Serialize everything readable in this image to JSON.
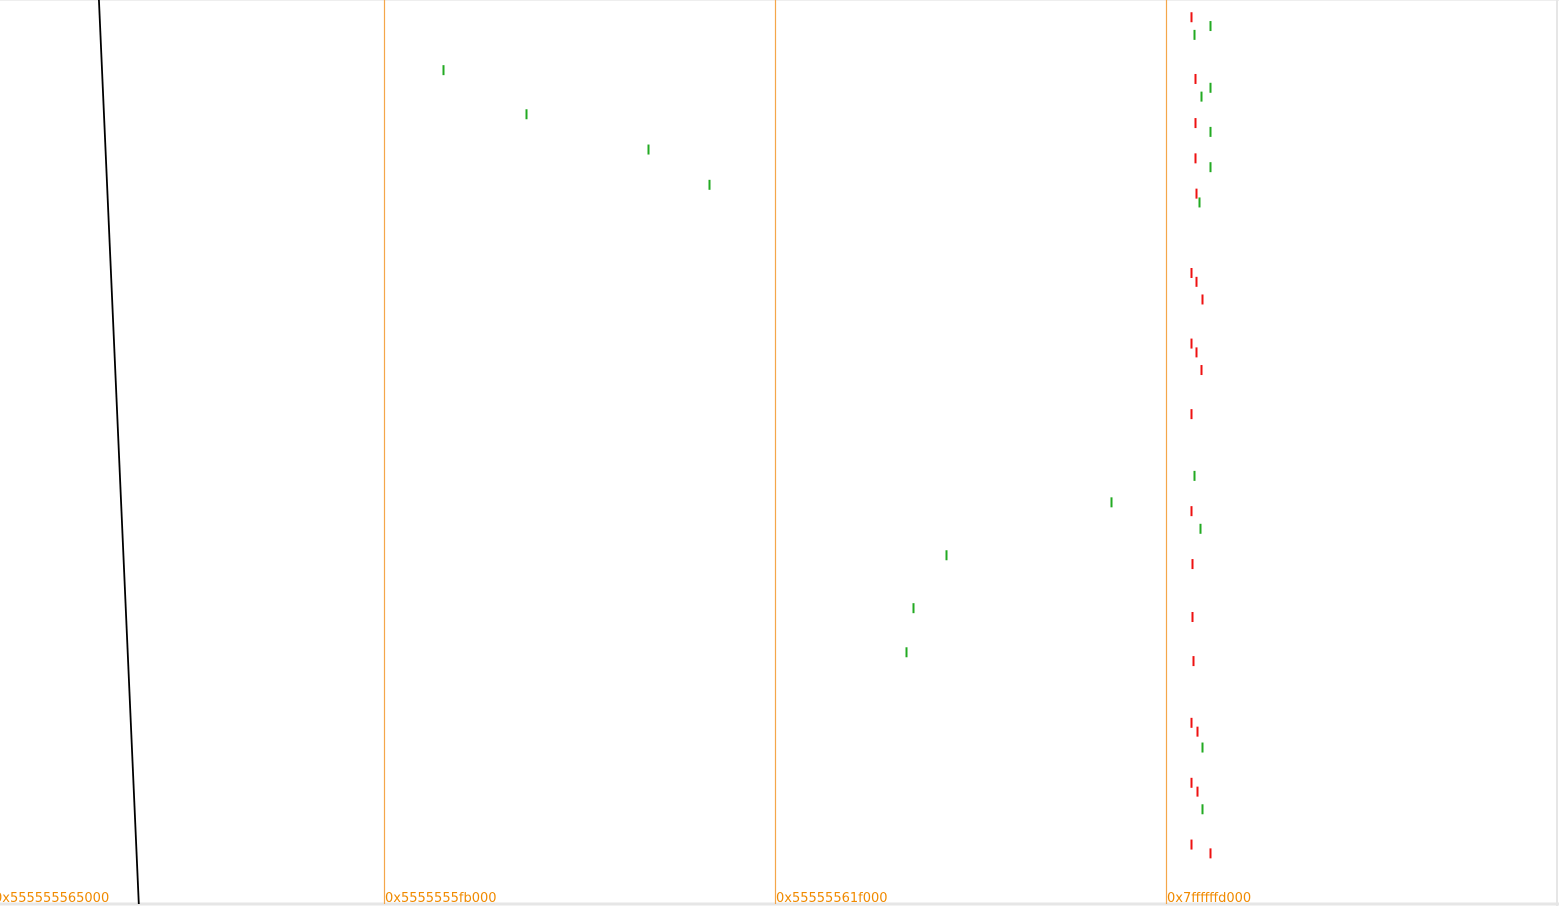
{
  "colors": {
    "lane_divider": "#f4a64a",
    "lane_label": "#f08a00",
    "trace_line": "#000000",
    "read_access": "#22aa22",
    "write_access": "#ee1111",
    "background": "#ffffff",
    "frame": "#e6e6e6"
  },
  "chart_data": {
    "type": "scatter",
    "title": "",
    "xlabel": "",
    "ylabel": "",
    "grid": false,
    "legend": "none",
    "lanes": [
      {
        "label": "0x555555565000"
      },
      {
        "label": "0x5555555fb000"
      },
      {
        "label": "0x55555561f000"
      },
      {
        "label": "0x7ffffffd000"
      }
    ],
    "x_range_per_lane": [
      0,
      1
    ],
    "y_range": [
      0,
      1
    ],
    "trace": {
      "lane": 0,
      "points": [
        [
          0.253,
          0.0
        ],
        [
          0.355,
          1.0
        ]
      ]
    },
    "series": [
      {
        "kind": "read",
        "points": [
          {
            "lane": 1,
            "x": 0.15,
            "y": 0.075
          },
          {
            "lane": 1,
            "x": 0.362,
            "y": 0.125
          },
          {
            "lane": 1,
            "x": 0.676,
            "y": 0.165
          },
          {
            "lane": 1,
            "x": 0.83,
            "y": 0.205
          },
          {
            "lane": 2,
            "x": 0.86,
            "y": 0.565
          },
          {
            "lane": 2,
            "x": 0.437,
            "y": 0.625
          },
          {
            "lane": 2,
            "x": 0.353,
            "y": 0.685
          },
          {
            "lane": 2,
            "x": 0.335,
            "y": 0.735
          },
          {
            "lane": 3,
            "x": 0.113,
            "y": 0.025
          },
          {
            "lane": 3,
            "x": 0.072,
            "y": 0.035
          },
          {
            "lane": 3,
            "x": 0.113,
            "y": 0.095
          },
          {
            "lane": 3,
            "x": 0.089,
            "y": 0.105
          },
          {
            "lane": 3,
            "x": 0.113,
            "y": 0.145
          },
          {
            "lane": 3,
            "x": 0.113,
            "y": 0.185
          },
          {
            "lane": 3,
            "x": 0.084,
            "y": 0.225
          },
          {
            "lane": 3,
            "x": 0.072,
            "y": 0.535
          },
          {
            "lane": 3,
            "x": 0.087,
            "y": 0.595
          },
          {
            "lane": 3,
            "x": 0.092,
            "y": 0.843
          },
          {
            "lane": 3,
            "x": 0.092,
            "y": 0.913
          }
        ]
      },
      {
        "kind": "write",
        "points": [
          {
            "lane": 3,
            "x": 0.064,
            "y": 0.015
          },
          {
            "lane": 3,
            "x": 0.074,
            "y": 0.085
          },
          {
            "lane": 3,
            "x": 0.074,
            "y": 0.135
          },
          {
            "lane": 3,
            "x": 0.074,
            "y": 0.175
          },
          {
            "lane": 3,
            "x": 0.077,
            "y": 0.215
          },
          {
            "lane": 3,
            "x": 0.064,
            "y": 0.305
          },
          {
            "lane": 3,
            "x": 0.077,
            "y": 0.315
          },
          {
            "lane": 3,
            "x": 0.092,
            "y": 0.335
          },
          {
            "lane": 3,
            "x": 0.064,
            "y": 0.385
          },
          {
            "lane": 3,
            "x": 0.077,
            "y": 0.395
          },
          {
            "lane": 3,
            "x": 0.089,
            "y": 0.415
          },
          {
            "lane": 3,
            "x": 0.064,
            "y": 0.465
          },
          {
            "lane": 3,
            "x": 0.064,
            "y": 0.575
          },
          {
            "lane": 3,
            "x": 0.067,
            "y": 0.635
          },
          {
            "lane": 3,
            "x": 0.067,
            "y": 0.695
          },
          {
            "lane": 3,
            "x": 0.069,
            "y": 0.745
          },
          {
            "lane": 3,
            "x": 0.064,
            "y": 0.815
          },
          {
            "lane": 3,
            "x": 0.079,
            "y": 0.825
          },
          {
            "lane": 3,
            "x": 0.064,
            "y": 0.883
          },
          {
            "lane": 3,
            "x": 0.079,
            "y": 0.893
          },
          {
            "lane": 3,
            "x": 0.064,
            "y": 0.953
          },
          {
            "lane": 3,
            "x": 0.113,
            "y": 0.963
          }
        ]
      }
    ]
  }
}
